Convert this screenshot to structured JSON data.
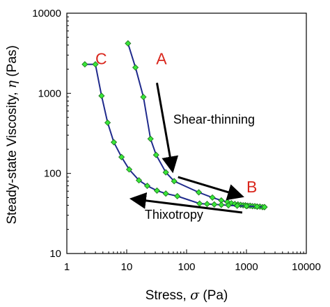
{
  "chart_data": {
    "type": "scatter",
    "xscale": "log",
    "yscale": "log",
    "xlim": [
      1,
      10000
    ],
    "ylim": [
      10,
      10000
    ],
    "x_ticks": [
      1,
      10,
      100,
      1000,
      10000
    ],
    "x_tick_labels": [
      "1",
      "10",
      "100",
      "1000",
      "10000"
    ],
    "y_ticks": [
      10,
      100,
      1000,
      10000
    ],
    "y_tick_labels": [
      "10",
      "100",
      "1000",
      "10000"
    ],
    "xlabel_prefix": "Stress, ",
    "xlabel_symbol": "σ",
    "xlabel_suffix": " (Pa)",
    "ylabel_prefix": "Steady-state Viscosity, ",
    "ylabel_symbol": "η",
    "ylabel_suffix": " (Pas)",
    "grid": false,
    "line_color": "#1f2a8c",
    "marker_color": "#39e639",
    "marker_edge": "#1a6b1a",
    "annotation_color": "#d9261c",
    "series": [
      {
        "x": [
          10.5,
          14,
          19,
          25,
          31,
          45,
          62,
          160,
          270,
          380,
          480,
          560,
          640,
          720,
          800,
          880,
          960,
          1050,
          1150,
          1260,
          1380,
          1520,
          1680,
          1850,
          2000
        ],
        "y": [
          4200,
          2100,
          900,
          270,
          170,
          103,
          80,
          58,
          50,
          46,
          44,
          42.5,
          41.5,
          41,
          40.5,
          40,
          40,
          39.5,
          39.5,
          39,
          39,
          38.5,
          38.5,
          38,
          38
        ]
      },
      {
        "x": [
          2000,
          1500,
          1000,
          700,
          500,
          380,
          290,
          220,
          165,
          70,
          45,
          32,
          22,
          16,
          11,
          8.2,
          6.1,
          4.8,
          3.8,
          3.0,
          2.0
        ],
        "y": [
          38,
          38.5,
          39,
          39.5,
          40,
          40.5,
          41,
          41.5,
          42,
          52,
          56,
          61,
          70,
          82,
          112,
          160,
          245,
          430,
          930,
          2300,
          2300
        ]
      }
    ],
    "annotations": [
      {
        "text": "A",
        "style": "big",
        "x": 31,
        "y": 2300
      },
      {
        "text": "C",
        "style": "big",
        "x": 3.0,
        "y": 2300
      },
      {
        "text": "B",
        "style": "big",
        "x": 1000,
        "y": 58
      },
      {
        "text": "Shear-thinning",
        "style": "text",
        "x": 60,
        "y": 420
      },
      {
        "text": "Thixotropy",
        "style": "text",
        "x": 20,
        "y": 27
      }
    ],
    "arrows": [
      {
        "from": [
          32,
          1350
        ],
        "to": [
          58,
          110
        ]
      },
      {
        "from": [
          72,
          90
        ],
        "to": [
          820,
          52
        ]
      },
      {
        "from": [
          850,
          32.5
        ],
        "to": [
          12.5,
          48
        ]
      }
    ]
  }
}
